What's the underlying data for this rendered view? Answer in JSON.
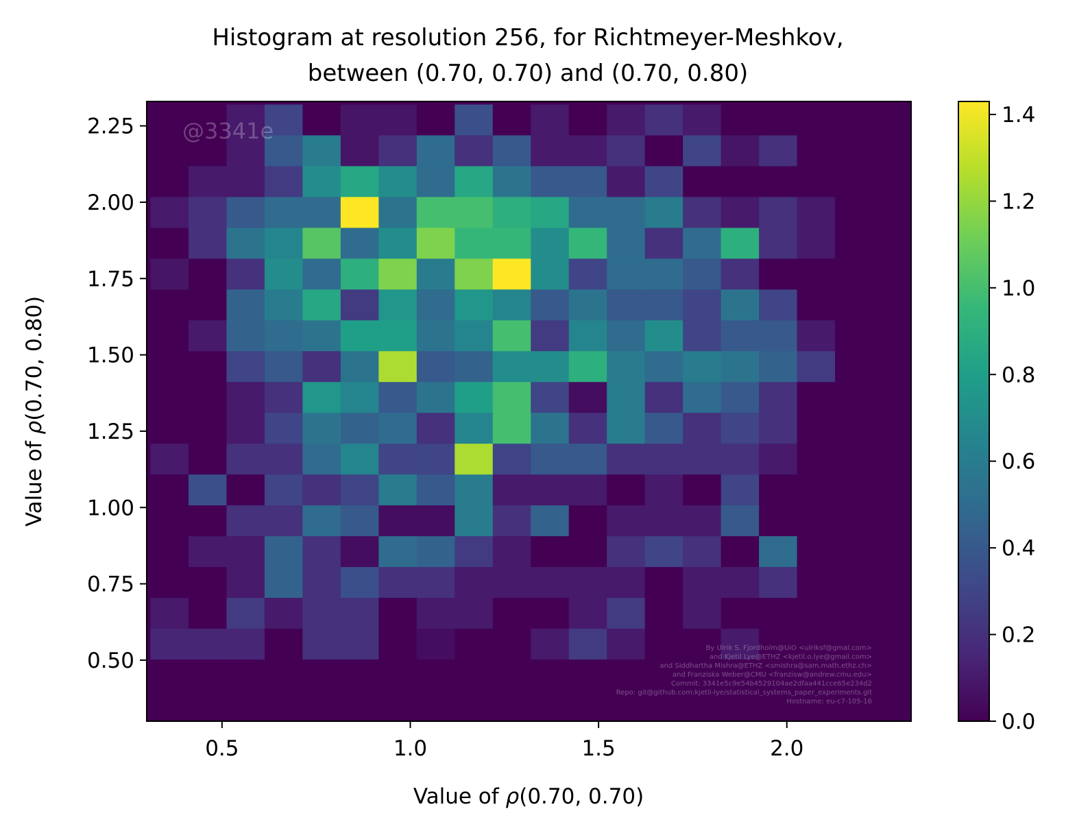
{
  "chart_data": {
    "type": "heatmap",
    "title": "Histogram at resolution 256, for Richtmeyer-Meshkov,",
    "subtitle": "between (0.70, 0.70) and (0.70, 0.80)",
    "xlabel_prefix": "Value of ",
    "xlabel_rho": "ρ",
    "xlabel_suffix": "(0.70, 0.70)",
    "ylabel_prefix": "Value of ",
    "ylabel_rho": "ρ",
    "ylabel_suffix": "(0.70, 0.80)",
    "xlim": [
      0.3,
      2.33
    ],
    "ylim": [
      0.3,
      2.33
    ],
    "x_edges_start": 0.31,
    "y_edges_start": 0.3,
    "bin_width": 0.101,
    "xticks": [
      0.5,
      1.0,
      1.5,
      2.0
    ],
    "xtick_labels": [
      "0.5",
      "1.0",
      "1.5",
      "2.0"
    ],
    "yticks": [
      0.5,
      0.75,
      1.0,
      1.25,
      1.5,
      1.75,
      2.0,
      2.25
    ],
    "ytick_labels": [
      "0.50",
      "0.75",
      "1.00",
      "1.25",
      "1.50",
      "1.75",
      "2.00",
      "2.25"
    ],
    "colormap": "viridis",
    "colorbar_range": [
      0.0,
      1.43
    ],
    "colorbar_ticks": [
      0.0,
      0.2,
      0.4,
      0.6,
      0.8,
      1.0,
      1.2,
      1.4
    ],
    "colorbar_tick_labels": [
      "0.0",
      "0.2",
      "0.4",
      "0.6",
      "0.8",
      "1.0",
      "1.2",
      "1.4"
    ],
    "grid": false,
    "values_rows_top_to_bottom": [
      [
        0.0,
        0.0,
        0.1,
        0.3,
        0.0,
        0.08,
        0.08,
        0.0,
        0.35,
        0.0,
        0.1,
        0.0,
        0.1,
        0.2,
        0.1,
        0.0,
        0.0,
        0.0,
        0.0,
        0.0
      ],
      [
        0.0,
        0.0,
        0.1,
        0.4,
        0.6,
        0.08,
        0.2,
        0.5,
        0.2,
        0.4,
        0.1,
        0.1,
        0.2,
        0.0,
        0.3,
        0.08,
        0.2,
        0.0,
        0.0,
        0.0
      ],
      [
        0.0,
        0.1,
        0.1,
        0.25,
        0.7,
        0.85,
        0.7,
        0.5,
        0.85,
        0.55,
        0.4,
        0.4,
        0.1,
        0.3,
        0.0,
        0.0,
        0.0,
        0.0,
        0.0,
        0.0
      ],
      [
        0.1,
        0.2,
        0.4,
        0.5,
        0.5,
        1.43,
        0.55,
        1.0,
        1.0,
        0.9,
        0.85,
        0.5,
        0.5,
        0.6,
        0.2,
        0.1,
        0.2,
        0.1,
        0.0,
        0.0
      ],
      [
        0.0,
        0.2,
        0.55,
        0.65,
        1.05,
        0.5,
        0.7,
        1.15,
        0.95,
        0.95,
        0.7,
        0.95,
        0.5,
        0.2,
        0.5,
        0.9,
        0.2,
        0.1,
        0.0,
        0.0
      ],
      [
        0.08,
        0.0,
        0.2,
        0.7,
        0.5,
        0.9,
        1.15,
        0.6,
        1.15,
        1.43,
        0.7,
        0.3,
        0.5,
        0.5,
        0.4,
        0.2,
        0.0,
        0.0,
        0.0,
        0.0
      ],
      [
        0.0,
        0.0,
        0.45,
        0.6,
        0.85,
        0.25,
        0.75,
        0.5,
        0.75,
        0.65,
        0.4,
        0.55,
        0.4,
        0.4,
        0.3,
        0.55,
        0.3,
        0.0,
        0.0,
        0.0
      ],
      [
        0.0,
        0.1,
        0.45,
        0.5,
        0.55,
        0.8,
        0.8,
        0.55,
        0.65,
        1.0,
        0.25,
        0.65,
        0.5,
        0.7,
        0.3,
        0.4,
        0.4,
        0.1,
        0.0,
        0.0
      ],
      [
        0.0,
        0.0,
        0.3,
        0.4,
        0.2,
        0.55,
        1.25,
        0.4,
        0.45,
        0.7,
        0.7,
        0.9,
        0.6,
        0.5,
        0.6,
        0.55,
        0.45,
        0.25,
        0.0,
        0.0
      ],
      [
        0.0,
        0.0,
        0.1,
        0.2,
        0.75,
        0.65,
        0.4,
        0.55,
        0.8,
        1.0,
        0.3,
        0.05,
        0.6,
        0.2,
        0.5,
        0.4,
        0.2,
        0.0,
        0.0,
        0.0
      ],
      [
        0.0,
        0.0,
        0.1,
        0.3,
        0.55,
        0.45,
        0.5,
        0.2,
        0.65,
        1.0,
        0.55,
        0.2,
        0.6,
        0.4,
        0.2,
        0.3,
        0.2,
        0.0,
        0.0,
        0.0
      ],
      [
        0.1,
        0.0,
        0.2,
        0.2,
        0.5,
        0.65,
        0.3,
        0.3,
        1.25,
        0.3,
        0.4,
        0.4,
        0.2,
        0.2,
        0.2,
        0.2,
        0.1,
        0.0,
        0.0,
        0.0
      ],
      [
        0.0,
        0.35,
        0.0,
        0.3,
        0.2,
        0.3,
        0.6,
        0.4,
        0.6,
        0.1,
        0.1,
        0.1,
        0.0,
        0.1,
        0.0,
        0.3,
        0.0,
        0.0,
        0.0,
        0.0
      ],
      [
        0.0,
        0.0,
        0.2,
        0.2,
        0.5,
        0.4,
        0.05,
        0.05,
        0.6,
        0.2,
        0.45,
        0.0,
        0.1,
        0.1,
        0.1,
        0.4,
        0.0,
        0.0,
        0.0,
        0.0
      ],
      [
        0.0,
        0.1,
        0.1,
        0.45,
        0.2,
        0.05,
        0.5,
        0.45,
        0.25,
        0.1,
        0.0,
        0.0,
        0.2,
        0.3,
        0.2,
        0.0,
        0.5,
        0.0,
        0.0,
        0.0
      ],
      [
        0.0,
        0.0,
        0.1,
        0.45,
        0.2,
        0.35,
        0.2,
        0.2,
        0.1,
        0.1,
        0.1,
        0.1,
        0.1,
        0.0,
        0.1,
        0.1,
        0.2,
        0.0,
        0.0,
        0.0
      ],
      [
        0.1,
        0.0,
        0.25,
        0.1,
        0.2,
        0.2,
        0.0,
        0.1,
        0.1,
        0.0,
        0.0,
        0.1,
        0.25,
        0.0,
        0.1,
        0.0,
        0.0,
        0.0,
        0.0,
        0.0
      ],
      [
        0.15,
        0.15,
        0.15,
        0.0,
        0.2,
        0.2,
        0.0,
        0.05,
        0.0,
        0.0,
        0.1,
        0.25,
        0.1,
        0.0,
        0.0,
        0.1,
        0.0,
        0.0,
        0.0,
        0.0
      ],
      [
        0.0,
        0.0,
        0.0,
        0.0,
        0.0,
        0.0,
        0.0,
        0.0,
        0.0,
        0.0,
        0.0,
        0.0,
        0.0,
        0.0,
        0.0,
        0.0,
        0.0,
        0.0,
        0.0,
        0.0
      ],
      [
        0.0,
        0.0,
        0.0,
        0.0,
        0.0,
        0.0,
        0.0,
        0.0,
        0.0,
        0.0,
        0.0,
        0.0,
        0.0,
        0.0,
        0.0,
        0.0,
        0.0,
        0.0,
        0.0,
        0.0
      ]
    ]
  },
  "watermark": "@3341e",
  "credits": [
    "By Ulrik S. Fjordholm@UiO <ulriksf@gmal.com>",
    "and Kjetil Lye@ETHZ <kjetil.o.lye@gmail.com>",
    "and Siddhartha Mishra@ETHZ <smishra@sam.math.ethz.ch>",
    "and Franziska Weber@CMU <franzisw@andrew.cmu.edu>",
    "Commit: 3341e5c9e54b4529104ae2dfaa441cce65e234d2",
    "Repo: git@github.com:kjetil-lye/statistical_systems_paper_experiments.git",
    "Hostname: eu-c7-105-16"
  ]
}
